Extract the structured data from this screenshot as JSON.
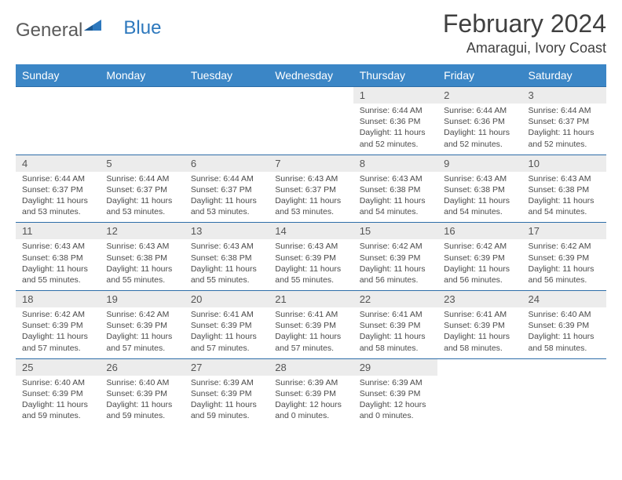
{
  "logo": {
    "text1": "General",
    "text2": "Blue"
  },
  "title": "February 2024",
  "location": "Amaragui, Ivory Coast",
  "colors": {
    "header_bg": "#3b86c6",
    "header_text": "#ffffff",
    "daynum_bg": "#ececec",
    "border": "#2d6da8",
    "body_text": "#4a4a4a",
    "title_text": "#404040"
  },
  "day_names": [
    "Sunday",
    "Monday",
    "Tuesday",
    "Wednesday",
    "Thursday",
    "Friday",
    "Saturday"
  ],
  "weeks": [
    [
      {
        "n": "",
        "t": ""
      },
      {
        "n": "",
        "t": ""
      },
      {
        "n": "",
        "t": ""
      },
      {
        "n": "",
        "t": ""
      },
      {
        "n": "1",
        "t": "Sunrise: 6:44 AM\nSunset: 6:36 PM\nDaylight: 11 hours and 52 minutes."
      },
      {
        "n": "2",
        "t": "Sunrise: 6:44 AM\nSunset: 6:36 PM\nDaylight: 11 hours and 52 minutes."
      },
      {
        "n": "3",
        "t": "Sunrise: 6:44 AM\nSunset: 6:37 PM\nDaylight: 11 hours and 52 minutes."
      }
    ],
    [
      {
        "n": "4",
        "t": "Sunrise: 6:44 AM\nSunset: 6:37 PM\nDaylight: 11 hours and 53 minutes."
      },
      {
        "n": "5",
        "t": "Sunrise: 6:44 AM\nSunset: 6:37 PM\nDaylight: 11 hours and 53 minutes."
      },
      {
        "n": "6",
        "t": "Sunrise: 6:44 AM\nSunset: 6:37 PM\nDaylight: 11 hours and 53 minutes."
      },
      {
        "n": "7",
        "t": "Sunrise: 6:43 AM\nSunset: 6:37 PM\nDaylight: 11 hours and 53 minutes."
      },
      {
        "n": "8",
        "t": "Sunrise: 6:43 AM\nSunset: 6:38 PM\nDaylight: 11 hours and 54 minutes."
      },
      {
        "n": "9",
        "t": "Sunrise: 6:43 AM\nSunset: 6:38 PM\nDaylight: 11 hours and 54 minutes."
      },
      {
        "n": "10",
        "t": "Sunrise: 6:43 AM\nSunset: 6:38 PM\nDaylight: 11 hours and 54 minutes."
      }
    ],
    [
      {
        "n": "11",
        "t": "Sunrise: 6:43 AM\nSunset: 6:38 PM\nDaylight: 11 hours and 55 minutes."
      },
      {
        "n": "12",
        "t": "Sunrise: 6:43 AM\nSunset: 6:38 PM\nDaylight: 11 hours and 55 minutes."
      },
      {
        "n": "13",
        "t": "Sunrise: 6:43 AM\nSunset: 6:38 PM\nDaylight: 11 hours and 55 minutes."
      },
      {
        "n": "14",
        "t": "Sunrise: 6:43 AM\nSunset: 6:39 PM\nDaylight: 11 hours and 55 minutes."
      },
      {
        "n": "15",
        "t": "Sunrise: 6:42 AM\nSunset: 6:39 PM\nDaylight: 11 hours and 56 minutes."
      },
      {
        "n": "16",
        "t": "Sunrise: 6:42 AM\nSunset: 6:39 PM\nDaylight: 11 hours and 56 minutes."
      },
      {
        "n": "17",
        "t": "Sunrise: 6:42 AM\nSunset: 6:39 PM\nDaylight: 11 hours and 56 minutes."
      }
    ],
    [
      {
        "n": "18",
        "t": "Sunrise: 6:42 AM\nSunset: 6:39 PM\nDaylight: 11 hours and 57 minutes."
      },
      {
        "n": "19",
        "t": "Sunrise: 6:42 AM\nSunset: 6:39 PM\nDaylight: 11 hours and 57 minutes."
      },
      {
        "n": "20",
        "t": "Sunrise: 6:41 AM\nSunset: 6:39 PM\nDaylight: 11 hours and 57 minutes."
      },
      {
        "n": "21",
        "t": "Sunrise: 6:41 AM\nSunset: 6:39 PM\nDaylight: 11 hours and 57 minutes."
      },
      {
        "n": "22",
        "t": "Sunrise: 6:41 AM\nSunset: 6:39 PM\nDaylight: 11 hours and 58 minutes."
      },
      {
        "n": "23",
        "t": "Sunrise: 6:41 AM\nSunset: 6:39 PM\nDaylight: 11 hours and 58 minutes."
      },
      {
        "n": "24",
        "t": "Sunrise: 6:40 AM\nSunset: 6:39 PM\nDaylight: 11 hours and 58 minutes."
      }
    ],
    [
      {
        "n": "25",
        "t": "Sunrise: 6:40 AM\nSunset: 6:39 PM\nDaylight: 11 hours and 59 minutes."
      },
      {
        "n": "26",
        "t": "Sunrise: 6:40 AM\nSunset: 6:39 PM\nDaylight: 11 hours and 59 minutes."
      },
      {
        "n": "27",
        "t": "Sunrise: 6:39 AM\nSunset: 6:39 PM\nDaylight: 11 hours and 59 minutes."
      },
      {
        "n": "28",
        "t": "Sunrise: 6:39 AM\nSunset: 6:39 PM\nDaylight: 12 hours and 0 minutes."
      },
      {
        "n": "29",
        "t": "Sunrise: 6:39 AM\nSunset: 6:39 PM\nDaylight: 12 hours and 0 minutes."
      },
      {
        "n": "",
        "t": ""
      },
      {
        "n": "",
        "t": ""
      }
    ]
  ]
}
